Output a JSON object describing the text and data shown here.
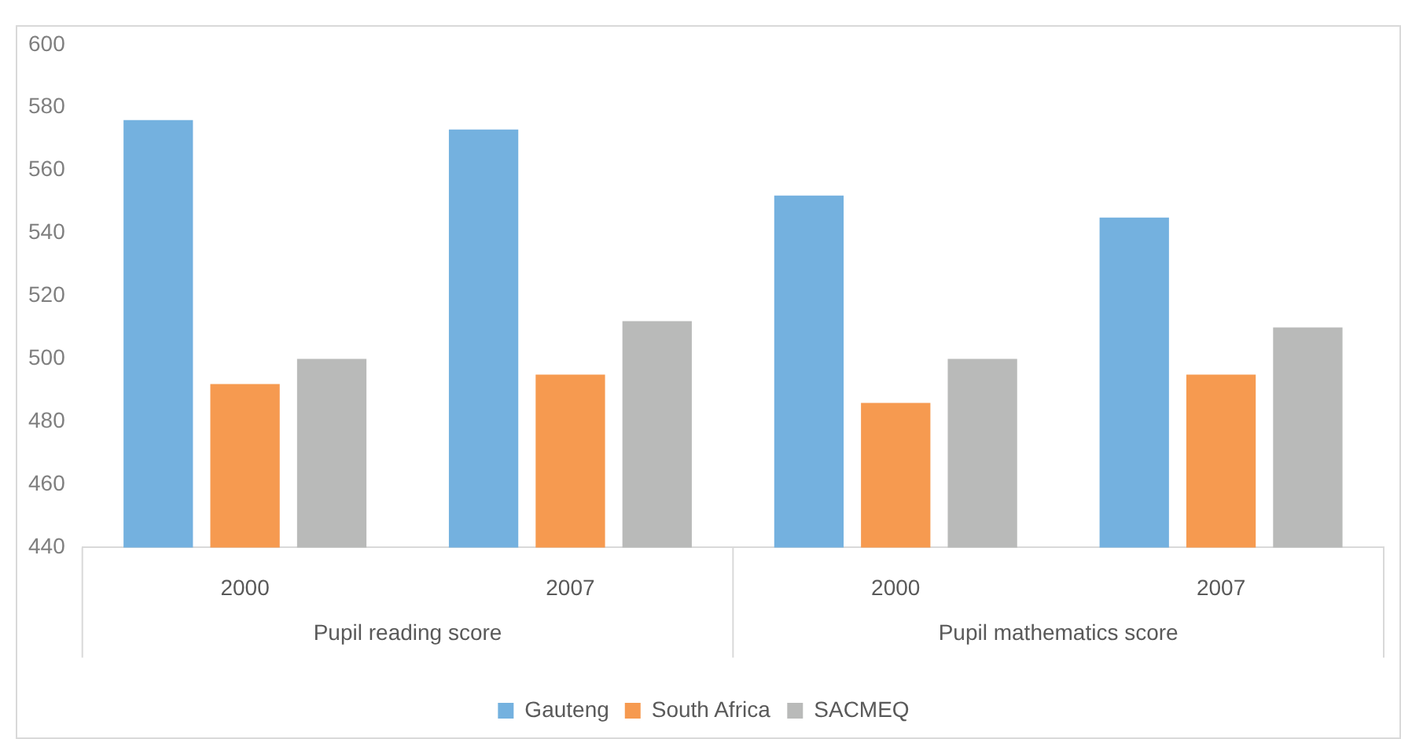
{
  "chart_data": {
    "type": "bar",
    "categories": [
      "2000",
      "2007",
      "2000",
      "2007"
    ],
    "series": [
      {
        "name": "Gauteng",
        "color": "#74b1df",
        "values": [
          576,
          573,
          552,
          545
        ]
      },
      {
        "name": "South Africa",
        "color": "#f69a50",
        "values": [
          492,
          495,
          486,
          495
        ]
      },
      {
        "name": "SACMEQ",
        "color": "#b9bab9",
        "values": [
          500,
          512,
          500,
          510
        ]
      }
    ],
    "annotations": [
      "Pupil reading score",
      "Pupil mathematics score"
    ],
    "ylim": [
      440,
      600
    ],
    "yticks": [
      440,
      460,
      480,
      500,
      520,
      540,
      560,
      580,
      600
    ],
    "grid": false,
    "legend": "bottom"
  }
}
